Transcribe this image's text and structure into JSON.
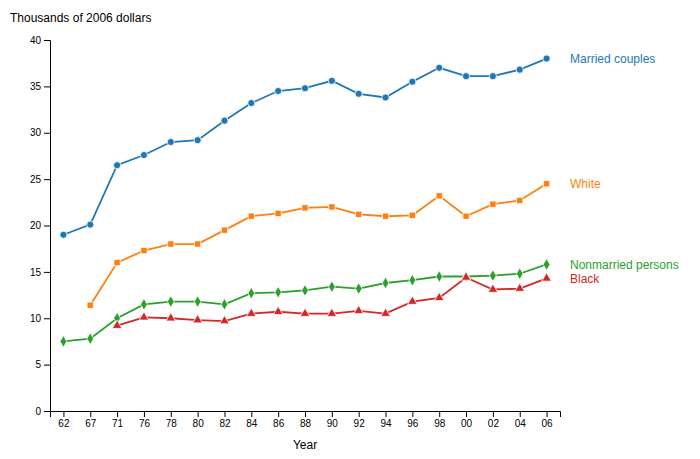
{
  "chart_data": {
    "type": "line",
    "xlabel": "Year",
    "ylabel": "Thousands of 2006 dollars",
    "categories": [
      "62",
      "67",
      "71",
      "76",
      "78",
      "80",
      "82",
      "84",
      "86",
      "88",
      "90",
      "92",
      "94",
      "96",
      "98",
      "00",
      "02",
      "04",
      "06"
    ],
    "series": [
      {
        "name": "Married couples",
        "marker": "circle",
        "values": [
          19.0,
          20.1,
          26.5,
          27.6,
          29.0,
          29.2,
          31.3,
          33.2,
          34.5,
          34.8,
          35.6,
          34.2,
          33.8,
          35.5,
          37.0,
          36.1,
          36.1,
          36.8,
          38.0
        ]
      },
      {
        "name": "White",
        "marker": "square",
        "values": [
          null,
          11.4,
          16.0,
          17.3,
          18.0,
          18.0,
          19.5,
          21.0,
          21.3,
          21.9,
          22.0,
          21.2,
          21.0,
          21.1,
          23.2,
          21.0,
          22.3,
          22.7,
          24.5
        ]
      },
      {
        "name": "Nonmarried persons",
        "marker": "diamond",
        "values": [
          7.5,
          7.8,
          10.0,
          11.5,
          11.8,
          11.8,
          11.5,
          12.7,
          12.8,
          13.0,
          13.4,
          13.2,
          13.8,
          14.1,
          14.5,
          14.5,
          14.6,
          14.8,
          15.8
        ]
      },
      {
        "name": "Black",
        "marker": "triangle",
        "values": [
          null,
          null,
          9.2,
          10.1,
          10.0,
          9.8,
          9.7,
          10.5,
          10.7,
          10.5,
          10.5,
          10.8,
          10.5,
          11.8,
          12.2,
          14.4,
          13.1,
          13.2,
          14.3
        ]
      }
    ],
    "ylim": [
      0,
      40
    ],
    "yticks": [
      0,
      5,
      10,
      15,
      20,
      25,
      30,
      35,
      40
    ],
    "grid": false
  }
}
